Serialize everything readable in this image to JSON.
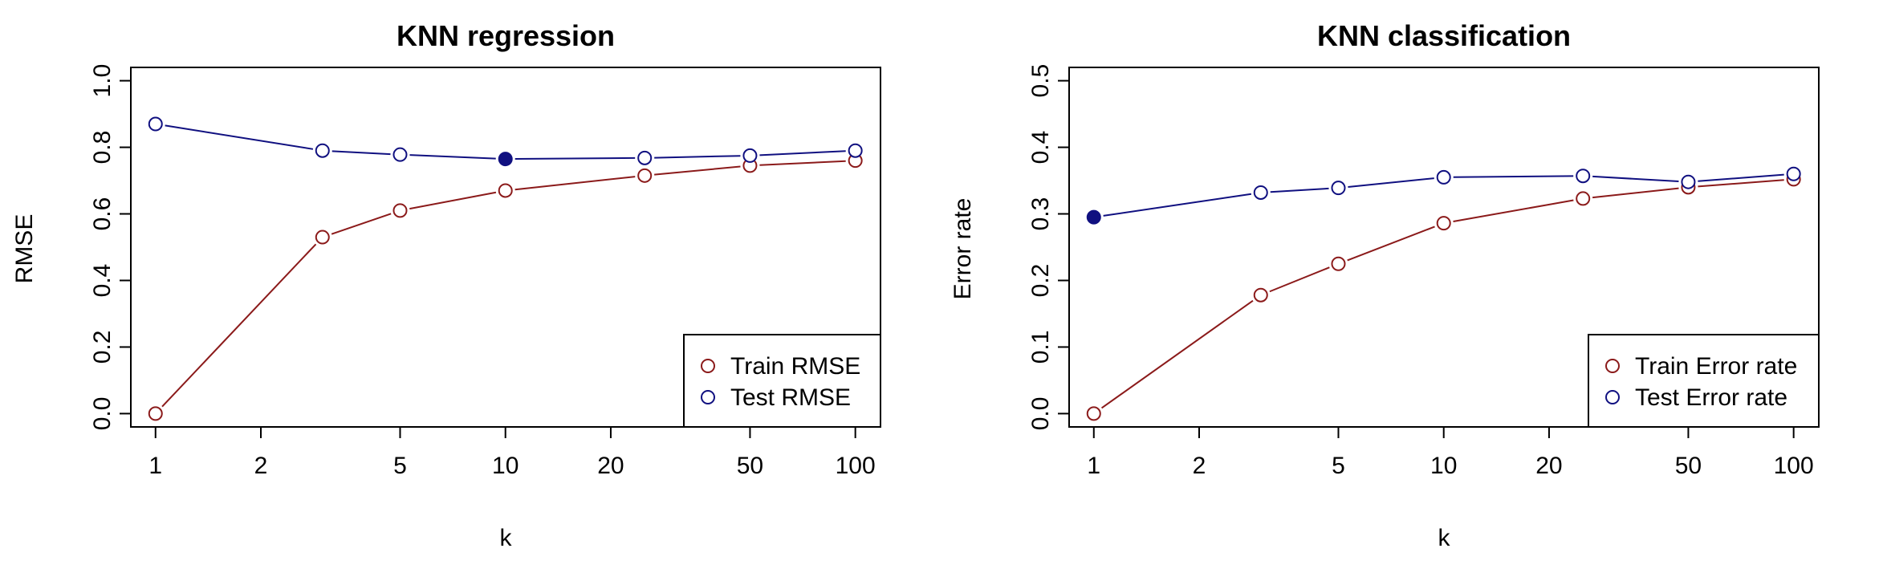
{
  "colors": {
    "train": "#8B1A1A",
    "test": "#101080",
    "axis": "#000000",
    "background": "#ffffff"
  },
  "chart_data": [
    {
      "type": "line",
      "title": "KNN regression",
      "xlabel": "k",
      "ylabel": "RMSE",
      "x_scale": "log",
      "xlim": [
        0.85,
        118
      ],
      "ylim": [
        -0.04,
        1.04
      ],
      "x_ticks": [
        1,
        2,
        5,
        10,
        20,
        50,
        100
      ],
      "x_tick_labels": [
        "1",
        "2",
        "5",
        "10",
        "20",
        "50",
        "100"
      ],
      "y_ticks": [
        0,
        0.2,
        0.4,
        0.6,
        0.8,
        1.0
      ],
      "y_tick_labels": [
        "0.0",
        "0.2",
        "0.4",
        "0.6",
        "0.8",
        "1.0"
      ],
      "grid": false,
      "legend_position": "bottom-right",
      "x": [
        1,
        3,
        5,
        10,
        25,
        50,
        100
      ],
      "series": [
        {
          "name": "Train RMSE",
          "color_key": "train",
          "values": [
            0.0,
            0.53,
            0.61,
            0.67,
            0.715,
            0.745,
            0.76
          ]
        },
        {
          "name": "Test RMSE",
          "color_key": "test",
          "values": [
            0.87,
            0.79,
            0.778,
            0.765,
            0.768,
            0.775,
            0.79
          ],
          "highlight_x": 10
        }
      ]
    },
    {
      "type": "line",
      "title": "KNN classification",
      "xlabel": "k",
      "ylabel": "Error rate",
      "x_scale": "log",
      "xlim": [
        0.85,
        118
      ],
      "ylim": [
        -0.02,
        0.52
      ],
      "x_ticks": [
        1,
        2,
        5,
        10,
        20,
        50,
        100
      ],
      "x_tick_labels": [
        "1",
        "2",
        "5",
        "10",
        "20",
        "50",
        "100"
      ],
      "y_ticks": [
        0,
        0.1,
        0.2,
        0.3,
        0.4,
        0.5
      ],
      "y_tick_labels": [
        "0.0",
        "0.1",
        "0.2",
        "0.3",
        "0.4",
        "0.5"
      ],
      "grid": false,
      "legend_position": "bottom-right",
      "x": [
        1,
        3,
        5,
        10,
        25,
        50,
        100
      ],
      "series": [
        {
          "name": "Train Error rate",
          "color_key": "train",
          "values": [
            0.0,
            0.178,
            0.225,
            0.286,
            0.323,
            0.34,
            0.352
          ]
        },
        {
          "name": "Test Error rate",
          "color_key": "test",
          "values": [
            0.295,
            0.332,
            0.339,
            0.355,
            0.357,
            0.348,
            0.36
          ],
          "highlight_x": 1
        }
      ]
    }
  ]
}
